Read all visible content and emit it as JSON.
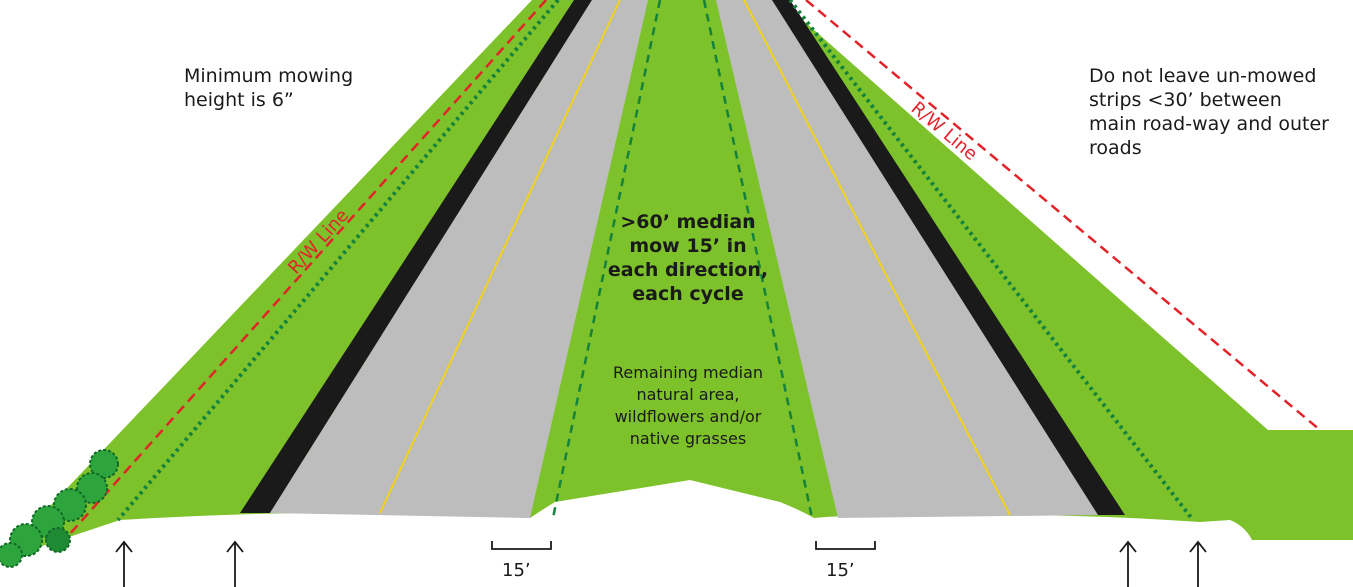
{
  "notes": {
    "min_height": "Minimum mowing height is 6”",
    "no_strips": "Do not leave un-mowed strips <30’ between main road-way and outer roads",
    "median_rule_line1": ">60’ median",
    "median_rule_line2": "mow 15’ in",
    "median_rule_line3": "each direction,",
    "median_rule_line4": "each cycle",
    "remaining_line1": "Remaining median",
    "remaining_line2": "natural area,",
    "remaining_line3": "wildflowers and/or",
    "remaining_line4": "native grasses"
  },
  "labels": {
    "rw_left": "R/W Line",
    "rw_right": "R/W Line",
    "dim_left": "15’",
    "dim_right": "15’"
  },
  "colors": {
    "grass": "#7dc22b",
    "pavement": "#bdbdbd",
    "shoulder": "#1a1a1a",
    "rw_line": "#e2232a",
    "mow_line": "#15823c",
    "lane_line": "#f3d21b"
  }
}
